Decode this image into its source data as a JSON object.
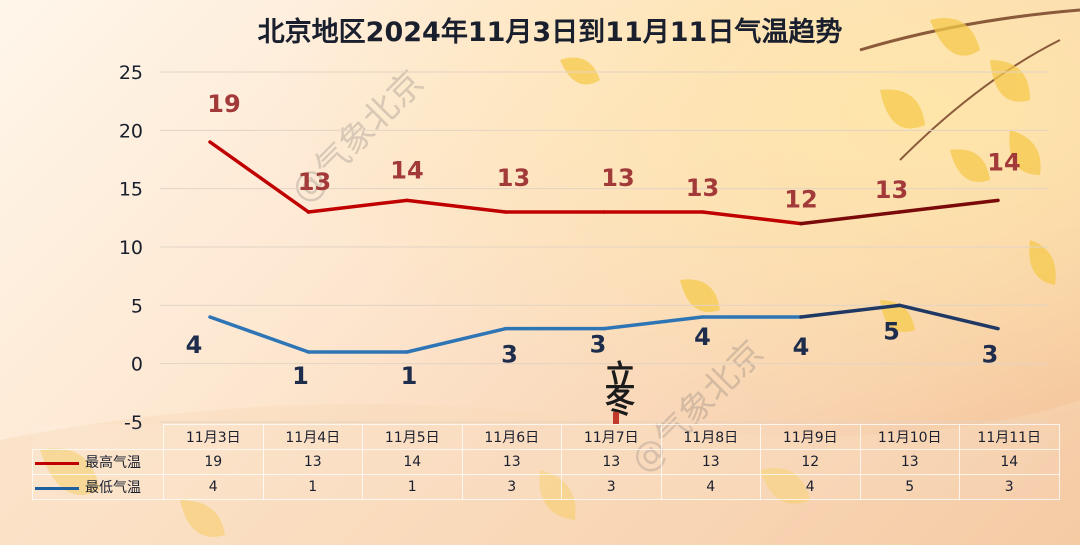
{
  "title": "北京地区2024年11月3日到11月11日气温趋势",
  "watermark": "@气象北京",
  "stamp": "立冬",
  "colors": {
    "high": "#c00000",
    "high_end": "#7a0a0a",
    "low": "#2e75b6",
    "low_end": "#1f3864",
    "high_label": "#a33a3a",
    "low_label": "#1f2d4d"
  },
  "table": {
    "rows": [
      {
        "label": "最高气温",
        "color": "#c00000"
      },
      {
        "label": "最低气温",
        "color": "#1f5f9e"
      }
    ]
  },
  "chart_data": {
    "type": "line",
    "title": "北京地区2024年11月3日到11月11日气温趋势",
    "categories": [
      "11月3日",
      "11月4日",
      "11月5日",
      "11月6日",
      "11月7日",
      "11月8日",
      "11月9日",
      "11月10日",
      "11月11日"
    ],
    "series": [
      {
        "name": "最高气温",
        "values": [
          19,
          13,
          14,
          13,
          13,
          13,
          12,
          13,
          14
        ]
      },
      {
        "name": "最低气温",
        "values": [
          4,
          1,
          1,
          3,
          3,
          4,
          4,
          5,
          3
        ]
      }
    ],
    "ylim": [
      -5,
      25
    ],
    "yticks": [
      -5,
      0,
      5,
      10,
      15,
      20,
      25
    ],
    "grid": true,
    "legend": "table-bottom"
  }
}
